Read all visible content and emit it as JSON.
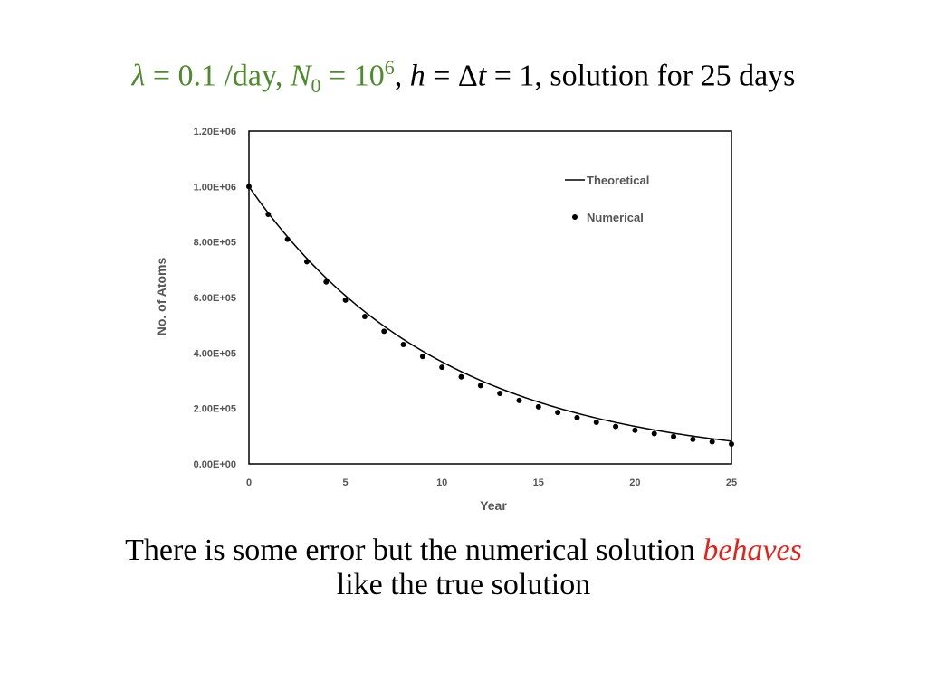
{
  "title": {
    "lambda_symbol": "λ",
    "lambda_value": " = 0.1 /day, ",
    "n_symbol": "N",
    "n_sub": "0",
    "n_eq": " = 10",
    "n_exp": "6",
    "sep": ", ",
    "h_symbol": "h",
    "h_eq": " = Δ",
    "t_symbol": "t",
    "rest": " = 1, solution for 25 days"
  },
  "caption": {
    "line1_start": "There is some error but the numerical solution ",
    "emph": "behaves",
    "line2": "like the true solution"
  },
  "colors": {
    "title_green": "#4f8a2e",
    "emph_red": "#e3231b",
    "axis_text": "#555555"
  },
  "chart_data": {
    "type": "line",
    "xlabel": "Year",
    "ylabel": "No. of Atoms",
    "xlim": [
      0,
      25
    ],
    "ylim": [
      0,
      1200000
    ],
    "xticks": [
      0,
      5,
      10,
      15,
      20,
      25
    ],
    "xtick_labels": [
      "0",
      "5",
      "10",
      "15",
      "20",
      "25"
    ],
    "yticks": [
      0,
      200000,
      400000,
      600000,
      800000,
      1000000,
      1200000
    ],
    "ytick_labels": [
      "0.00E+00",
      "2.00E+05",
      "4.00E+05",
      "6.00E+05",
      "8.00E+05",
      "1.00E+06",
      "1.20E+06"
    ],
    "grid": false,
    "legend_position": "top-right",
    "series": [
      {
        "name": "Theoretical",
        "style": "line",
        "x": [
          0,
          1,
          2,
          3,
          4,
          5,
          6,
          7,
          8,
          9,
          10,
          11,
          12,
          13,
          14,
          15,
          16,
          17,
          18,
          19,
          20,
          21,
          22,
          23,
          24,
          25
        ],
        "values": [
          1000000,
          904837,
          818731,
          740818,
          670320,
          606531,
          548812,
          496585,
          449329,
          406570,
          367879,
          332871,
          301194,
          272532,
          246597,
          223130,
          201897,
          182684,
          165299,
          149569,
          135335,
          122456,
          110803,
          100259,
          90718,
          82085
        ]
      },
      {
        "name": "Numerical",
        "style": "scatter",
        "x": [
          0,
          1,
          2,
          3,
          4,
          5,
          6,
          7,
          8,
          9,
          10,
          11,
          12,
          13,
          14,
          15,
          16,
          17,
          18,
          19,
          20,
          21,
          22,
          23,
          24,
          25
        ],
        "values": [
          1000000,
          900000,
          810000,
          729000,
          656100,
          590490,
          531441,
          478297,
          430467,
          387420,
          348678,
          313811,
          282430,
          254187,
          228768,
          205891,
          185302,
          166772,
          150095,
          135085,
          121577,
          109419,
          98477,
          88629,
          79766,
          71790
        ]
      }
    ]
  }
}
